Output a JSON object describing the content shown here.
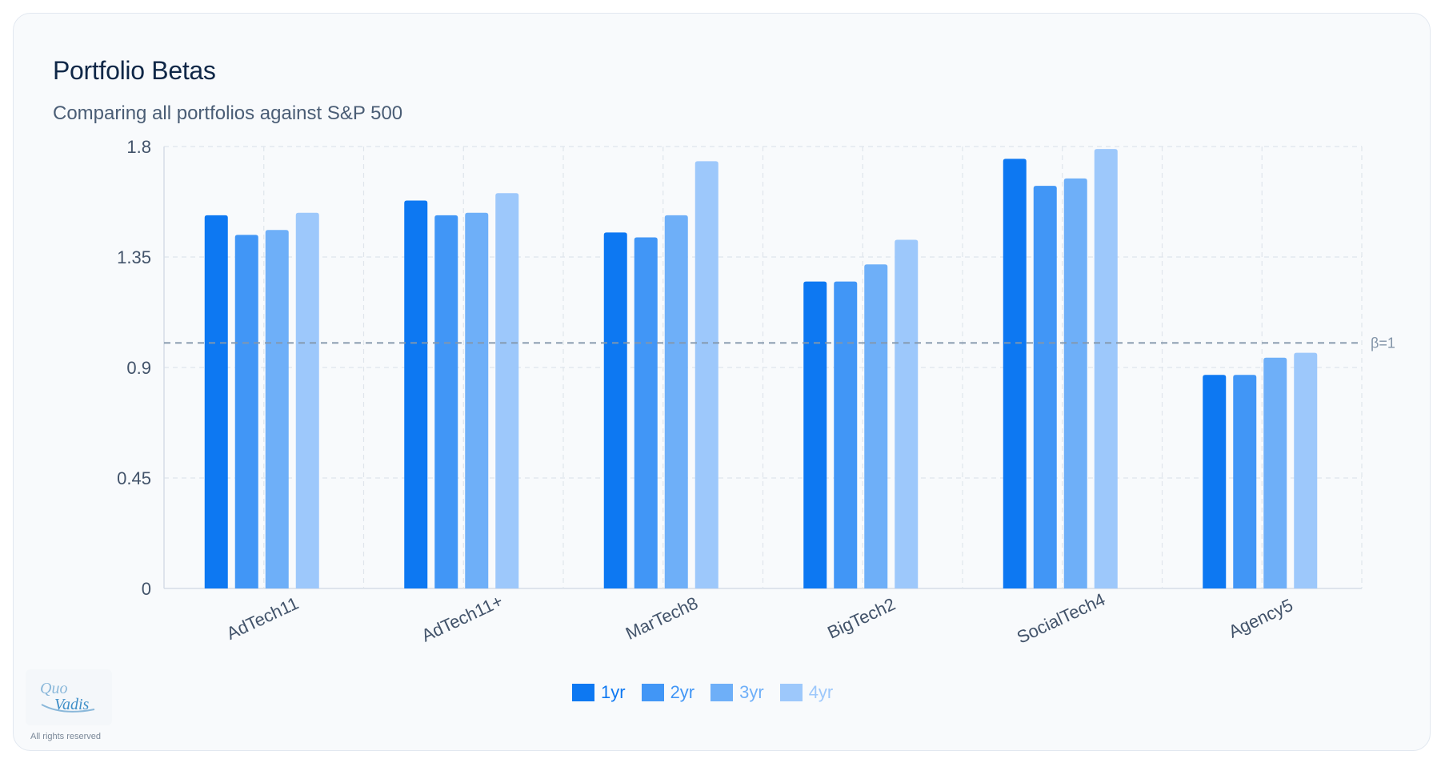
{
  "header": {
    "title": "Portfolio Betas",
    "subtitle": "Comparing all portfolios against S&P 500"
  },
  "chart_data": {
    "type": "bar",
    "categories": [
      "AdTech11",
      "AdTech11+",
      "MarTech8",
      "BigTech2",
      "SocialTech4",
      "Agency5"
    ],
    "series": [
      {
        "name": "1yr",
        "color": "#0d78f2",
        "values": [
          1.52,
          1.58,
          1.45,
          1.25,
          1.75,
          0.87
        ]
      },
      {
        "name": "2yr",
        "color": "#4196f6",
        "values": [
          1.44,
          1.52,
          1.43,
          1.25,
          1.64,
          0.87
        ]
      },
      {
        "name": "3yr",
        "color": "#6eaff8",
        "values": [
          1.46,
          1.53,
          1.52,
          1.32,
          1.67,
          0.94
        ]
      },
      {
        "name": "4yr",
        "color": "#9dc8fb",
        "values": [
          1.53,
          1.61,
          1.74,
          1.42,
          1.79,
          0.96
        ]
      }
    ],
    "ylim": [
      0,
      1.8
    ],
    "yticks": [
      "0",
      "0.45",
      "0.9",
      "1.35",
      "1.8"
    ],
    "reference_line": {
      "value": 1.0,
      "label": "β=1"
    },
    "grid": true,
    "legend": "bottom-center",
    "xlabel": "",
    "ylabel": ""
  },
  "footer": {
    "logo_line1": "Quo",
    "logo_line2": "Vadis",
    "rights": "All rights reserved"
  }
}
